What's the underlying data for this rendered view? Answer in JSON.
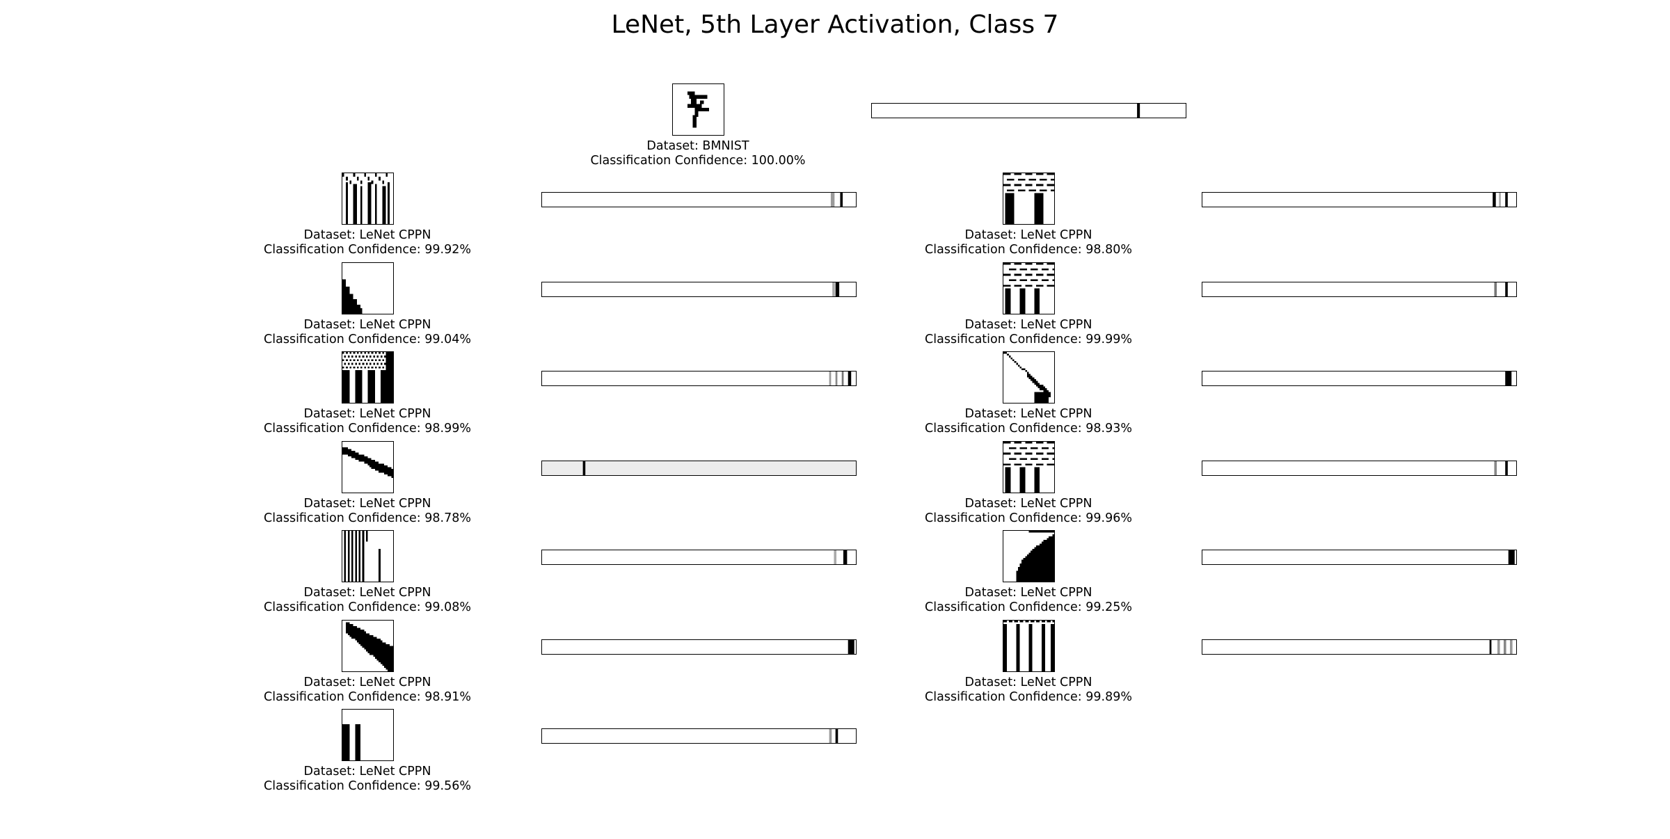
{
  "title": "LeNet, 5th Layer Activation, Class 7",
  "reference": {
    "dataset": "Dataset: BMNIST",
    "confidence": "Classification Confidence: 100.00%",
    "glyph": "seven",
    "activation": [
      {
        "pos": 0.845,
        "w": 0.009,
        "shade": "#000000"
      }
    ]
  },
  "samples": [
    {
      "column": "left",
      "dataset": "Dataset: LeNet CPPN",
      "confidence": "Classification Confidence: 99.92%",
      "pattern": "vertical-stripes-noisy-top",
      "activation": [
        {
          "pos": 0.92,
          "w": 0.012,
          "shade": "#9a9a9a"
        },
        {
          "pos": 0.95,
          "w": 0.008,
          "shade": "#000000"
        }
      ]
    },
    {
      "column": "left",
      "dataset": "Dataset: LeNet CPPN",
      "confidence": "Classification Confidence: 99.04%",
      "pattern": "corner-staircase",
      "activation": [
        {
          "pos": 0.935,
          "w": 0.012,
          "shade": "#000000"
        },
        {
          "pos": 0.925,
          "w": 0.008,
          "shade": "#aaaaaa"
        }
      ]
    },
    {
      "column": "left",
      "dataset": "Dataset: LeNet CPPN",
      "confidence": "Classification Confidence: 98.99%",
      "pattern": "thick-stripes-checker-top",
      "activation": [
        {
          "pos": 0.915,
          "w": 0.006,
          "shade": "#999999"
        },
        {
          "pos": 0.935,
          "w": 0.006,
          "shade": "#888888"
        },
        {
          "pos": 0.955,
          "w": 0.006,
          "shade": "#777777"
        },
        {
          "pos": 0.975,
          "w": 0.01,
          "shade": "#000000"
        }
      ]
    },
    {
      "column": "left",
      "dataset": "Dataset: LeNet CPPN",
      "confidence": "Classification Confidence: 98.78%",
      "pattern": "diagonal-band",
      "activation": [
        {
          "pos": 0.13,
          "w": 0.008,
          "shade": "#000000"
        },
        {
          "pos": 0.0,
          "w": 1.0,
          "shade": "#ececec"
        }
      ]
    },
    {
      "column": "left",
      "dataset": "Dataset: LeNet CPPN",
      "confidence": "Classification Confidence: 99.08%",
      "pattern": "thin-vertical-lines",
      "activation": [
        {
          "pos": 0.93,
          "w": 0.008,
          "shade": "#aaaaaa"
        },
        {
          "pos": 0.96,
          "w": 0.012,
          "shade": "#000000"
        }
      ]
    },
    {
      "column": "left",
      "dataset": "Dataset: LeNet CPPN",
      "confidence": "Classification Confidence: 98.91%",
      "pattern": "lower-right-wedge",
      "activation": [
        {
          "pos": 0.975,
          "w": 0.02,
          "shade": "#000000"
        }
      ]
    },
    {
      "column": "left",
      "dataset": "Dataset: LeNet CPPN",
      "confidence": "Classification Confidence: 99.56%",
      "pattern": "two-left-bars",
      "activation": [
        {
          "pos": 0.915,
          "w": 0.008,
          "shade": "#999999"
        },
        {
          "pos": 0.935,
          "w": 0.008,
          "shade": "#000000"
        }
      ]
    },
    {
      "column": "right",
      "dataset": "Dataset: LeNet CPPN",
      "confidence": "Classification Confidence: 98.80%",
      "pattern": "dash-rows-two-bars",
      "activation": [
        {
          "pos": 0.925,
          "w": 0.01,
          "shade": "#000000"
        },
        {
          "pos": 0.965,
          "w": 0.008,
          "shade": "#000000"
        },
        {
          "pos": 0.945,
          "w": 0.006,
          "shade": "#aaaaaa"
        }
      ]
    },
    {
      "column": "right",
      "dataset": "Dataset: LeNet CPPN",
      "confidence": "Classification Confidence: 99.99%",
      "pattern": "dash-rows-three-bars",
      "activation": [
        {
          "pos": 0.93,
          "w": 0.008,
          "shade": "#777777"
        },
        {
          "pos": 0.965,
          "w": 0.008,
          "shade": "#000000"
        }
      ]
    },
    {
      "column": "right",
      "dataset": "Dataset: LeNet CPPN",
      "confidence": "Classification Confidence: 98.93%",
      "pattern": "diagonal-checker",
      "activation": [
        {
          "pos": 0.965,
          "w": 0.02,
          "shade": "#000000"
        }
      ]
    },
    {
      "column": "right",
      "dataset": "Dataset: LeNet CPPN",
      "confidence": "Classification Confidence: 99.96%",
      "pattern": "dash-rows-three-bars",
      "activation": [
        {
          "pos": 0.93,
          "w": 0.008,
          "shade": "#888888"
        },
        {
          "pos": 0.965,
          "w": 0.008,
          "shade": "#000000"
        }
      ]
    },
    {
      "column": "right",
      "dataset": "Dataset: LeNet CPPN",
      "confidence": "Classification Confidence: 99.25%",
      "pattern": "curved-corner-fill",
      "activation": [
        {
          "pos": 0.975,
          "w": 0.02,
          "shade": "#000000"
        }
      ]
    },
    {
      "column": "right",
      "dataset": "Dataset: LeNet CPPN",
      "confidence": "Classification Confidence: 99.89%",
      "pattern": "full-vertical-stripes",
      "activation": [
        {
          "pos": 0.915,
          "w": 0.006,
          "shade": "#000000"
        },
        {
          "pos": 0.94,
          "w": 0.008,
          "shade": "#999999"
        },
        {
          "pos": 0.96,
          "w": 0.008,
          "shade": "#888888"
        },
        {
          "pos": 0.98,
          "w": 0.008,
          "shade": "#999999"
        }
      ]
    }
  ]
}
